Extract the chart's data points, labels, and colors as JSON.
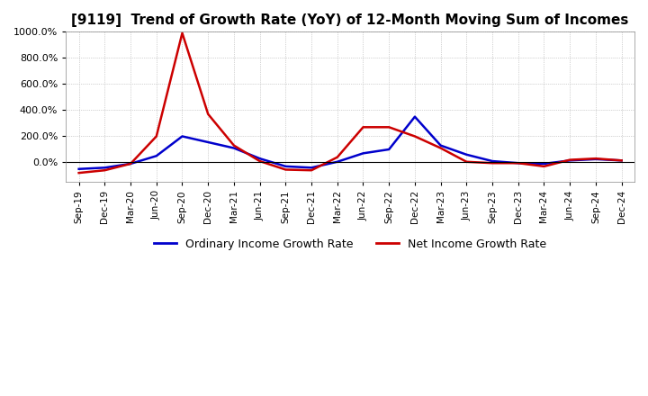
{
  "title": "[9119]  Trend of Growth Rate (YoY) of 12-Month Moving Sum of Incomes",
  "title_fontsize": 11,
  "legend_labels": [
    "Ordinary Income Growth Rate",
    "Net Income Growth Rate"
  ],
  "legend_colors": [
    "#0000CC",
    "#CC0000"
  ],
  "ylim": [
    -150,
    1000
  ],
  "ytick_values": [
    0,
    200,
    400,
    600,
    800,
    1000
  ],
  "background_color": "#FFFFFF",
  "grid_color": "#AAAAAA",
  "x_labels": [
    "Sep-19",
    "Dec-19",
    "Mar-20",
    "Jun-20",
    "Sep-20",
    "Dec-20",
    "Mar-21",
    "Jun-21",
    "Sep-21",
    "Dec-21",
    "Mar-22",
    "Jun-22",
    "Sep-22",
    "Dec-22",
    "Mar-23",
    "Jun-23",
    "Sep-23",
    "Dec-23",
    "Mar-24",
    "Jun-24",
    "Sep-24",
    "Dec-24"
  ],
  "ordinary_income": [
    -50,
    -40,
    -10,
    50,
    200,
    155,
    110,
    30,
    -30,
    -40,
    5,
    70,
    100,
    350,
    130,
    60,
    10,
    -5,
    -10,
    15,
    25,
    15
  ],
  "net_income": [
    -80,
    -60,
    -10,
    200,
    990,
    370,
    130,
    10,
    -55,
    -60,
    40,
    270,
    270,
    200,
    110,
    5,
    -5,
    -5,
    -30,
    20,
    30,
    15
  ]
}
